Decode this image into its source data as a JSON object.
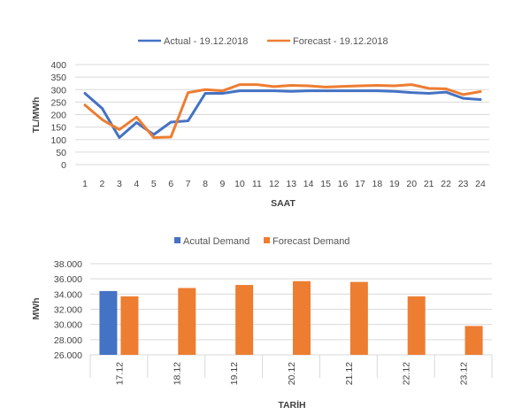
{
  "chart_data": [
    {
      "type": "line",
      "title": "",
      "xlabel": "SAAT",
      "ylabel": "TL/MWh",
      "ylim": [
        0,
        400
      ],
      "yticks": [
        400,
        350,
        300,
        250,
        200,
        150,
        100,
        50,
        0
      ],
      "grid": true,
      "legend_position": "top",
      "categories": [
        "1",
        "2",
        "3",
        "4",
        "5",
        "6",
        "7",
        "8",
        "9",
        "10",
        "11",
        "12",
        "13",
        "14",
        "15",
        "16",
        "17",
        "18",
        "19",
        "20",
        "21",
        "22",
        "23",
        "24"
      ],
      "series": [
        {
          "name": "Actual - 19.12.2018",
          "color": "#4472C4",
          "values": [
            285,
            225,
            108,
            168,
            120,
            170,
            175,
            285,
            285,
            295,
            295,
            295,
            293,
            295,
            295,
            295,
            295,
            295,
            293,
            288,
            285,
            290,
            265,
            260
          ]
        },
        {
          "name": "Forecast - 19.12.2018",
          "color": "#ED7D31",
          "values": [
            238,
            180,
            140,
            190,
            108,
            110,
            288,
            300,
            295,
            320,
            320,
            312,
            317,
            315,
            310,
            313,
            315,
            317,
            315,
            320,
            305,
            303,
            280,
            292
          ]
        }
      ]
    },
    {
      "type": "bar",
      "title": "",
      "xlabel": "TARİH",
      "ylabel": "MWh",
      "ylim": [
        26000,
        38000
      ],
      "yticks": [
        "38.000",
        "36.000",
        "34.000",
        "32.000",
        "30.000",
        "28.000",
        "26.000"
      ],
      "grid": true,
      "legend_position": "top",
      "categories": [
        "17.12",
        "18.12",
        "19.12",
        "20.12",
        "21.12",
        "22.12",
        "23.12"
      ],
      "series": [
        {
          "name": "Acutal Demand",
          "color": "#4472C4",
          "values": [
            34400,
            null,
            null,
            null,
            null,
            null,
            null
          ]
        },
        {
          "name": "Forecast Demand",
          "color": "#ED7D31",
          "values": [
            33700,
            34800,
            35200,
            35700,
            35600,
            33700,
            29800
          ]
        }
      ]
    }
  ]
}
